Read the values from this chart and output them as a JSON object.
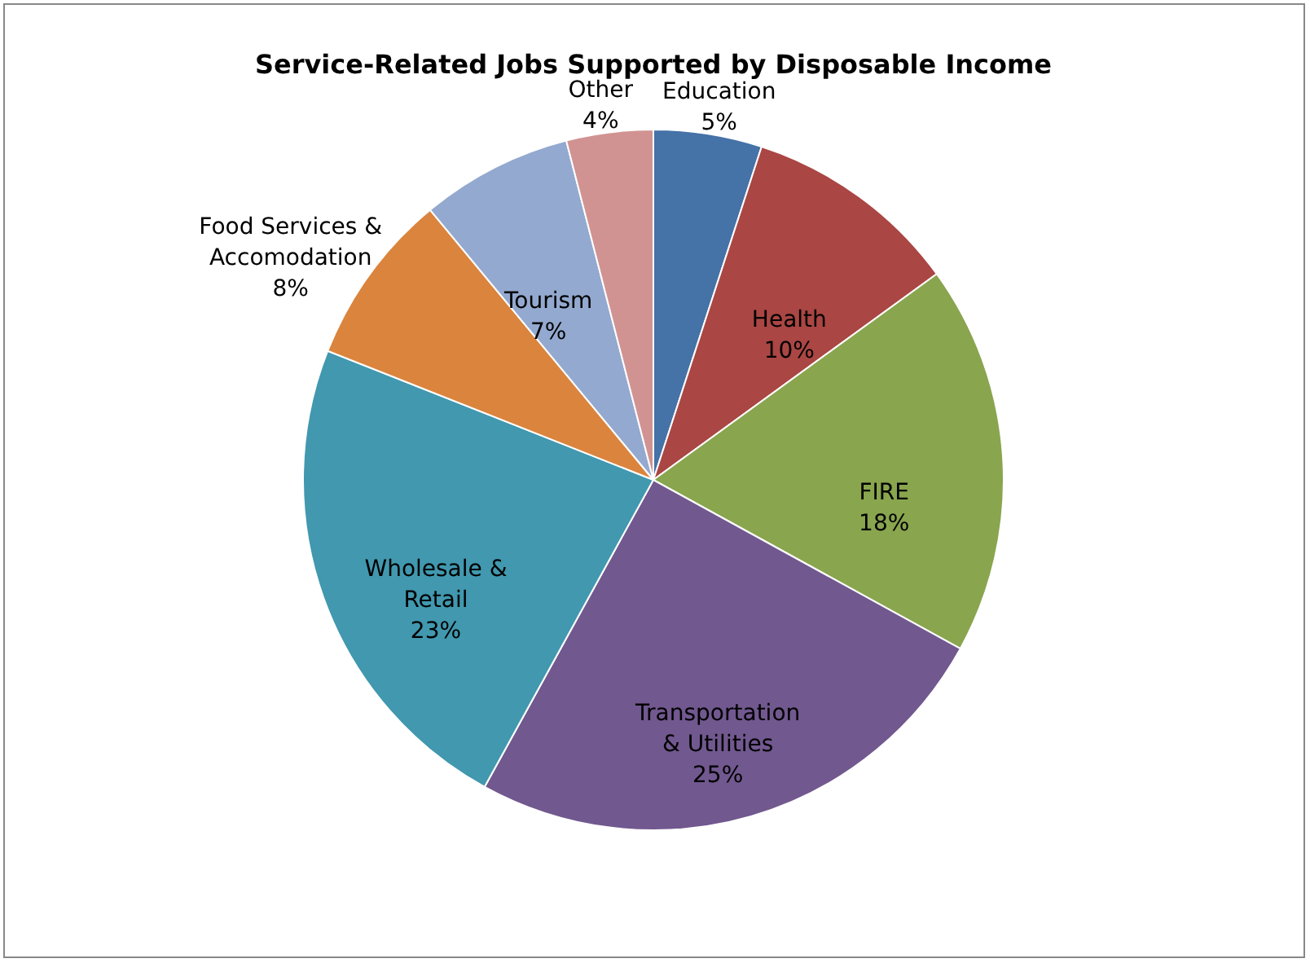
{
  "chart_data": {
    "type": "pie",
    "title": "Service-Related Jobs Supported by Disposable Income",
    "categories": [
      "Education",
      "Health",
      "FIRE",
      "Transportation & Utilities",
      "Wholesale & Retail",
      "Food Services & Accomodation",
      "Tourism",
      "Other"
    ],
    "values": [
      5,
      10,
      18,
      25,
      23,
      8,
      7,
      4
    ],
    "value_labels": [
      "5%",
      "10%",
      "18%",
      "25%",
      "23%",
      "8%",
      "7%",
      "4%"
    ],
    "colors": [
      "#4572a7",
      "#aa4643",
      "#89a54e",
      "#71588f",
      "#4198af",
      "#db843d",
      "#93a9cf",
      "#d19392"
    ]
  }
}
